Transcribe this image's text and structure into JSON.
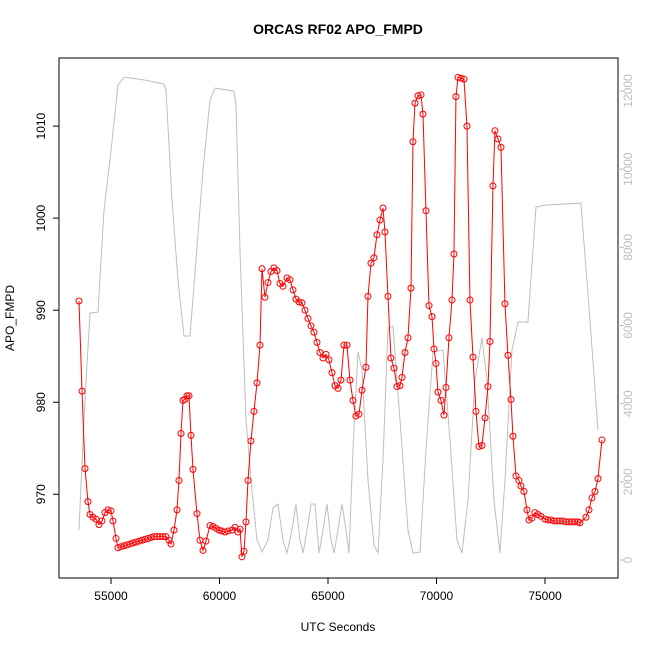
{
  "chart_data": {
    "type": "line",
    "title": "ORCAS RF02 APO_FMPD",
    "xlabel": "UTC Seconds",
    "ylabel": "APO_FMPD",
    "xlim": [
      52604,
      78364
    ],
    "xticks": [
      55000,
      60000,
      65000,
      70000,
      75000
    ],
    "ylim": [
      960.9,
      1017.4
    ],
    "yticks": [
      970,
      980,
      990,
      1000,
      1010
    ],
    "y2lim": [
      -460,
      12844
    ],
    "y2ticks": [
      0,
      2000,
      4000,
      6000,
      8000,
      10000,
      12000
    ],
    "series": [
      {
        "color": "#ff0000",
        "marker": "circle",
        "x": [
          53525,
          53664,
          53802,
          53940,
          54032,
          54171,
          54309,
          54447,
          54585,
          54724,
          54862,
          55000,
          55092,
          55230,
          55323,
          55461,
          55599,
          55737,
          55876,
          56014,
          56152,
          56290,
          56429,
          56567,
          56705,
          56843,
          56982,
          57120,
          57258,
          57396,
          57534,
          57673,
          57765,
          57903,
          58041,
          58133,
          58226,
          58318,
          58410,
          58502,
          58594,
          58686,
          58779,
          58963,
          59101,
          59239,
          59378,
          59562,
          59700,
          59838,
          59976,
          60115,
          60253,
          60391,
          60576,
          60714,
          60852,
          60944,
          61036,
          61129,
          61221,
          61313,
          61451,
          61589,
          61728,
          61866,
          61958,
          62096,
          62235,
          62373,
          62511,
          62649,
          62788,
          62926,
          63110,
          63248,
          63387,
          63525,
          63663,
          63801,
          63940,
          64078,
          64216,
          64354,
          64492,
          64631,
          64769,
          64907,
          65045,
          65184,
          65322,
          65460,
          65598,
          65737,
          65875,
          66013,
          66151,
          66290,
          66428,
          66566,
          66750,
          66843,
          66981,
          67119,
          67257,
          67396,
          67534,
          67626,
          67764,
          67902,
          68041,
          68179,
          68317,
          68409,
          68548,
          68686,
          68824,
          68916,
          69009,
          69147,
          69285,
          69377,
          69515,
          69654,
          69792,
          69884,
          69976,
          70068,
          70206,
          70344,
          70437,
          70575,
          70713,
          70805,
          70897,
          70990,
          71128,
          71266,
          71404,
          71542,
          71681,
          71819,
          71957,
          72095,
          72234,
          72372,
          72464,
          72602,
          72694,
          72833,
          72971,
          73155,
          73293,
          73432,
          73524,
          73662,
          73800,
          73892,
          74030,
          74169,
          74261,
          74399,
          74537,
          74676,
          74814,
          74998,
          75137,
          75275,
          75413,
          75551,
          75690,
          75828,
          75966,
          76104,
          76243,
          76381,
          76519,
          76611,
          76888,
          77026,
          77164,
          77303,
          77441,
          77625
        ],
        "values": [
          991.0,
          981.2,
          972.8,
          969.2,
          967.8,
          967.5,
          967.3,
          966.7,
          967.1,
          968.0,
          968.3,
          968.2,
          967.1,
          965.2,
          964.2,
          964.3,
          964.4,
          964.5,
          964.6,
          964.7,
          964.8,
          964.9,
          965.0,
          965.1,
          965.2,
          965.3,
          965.4,
          965.4,
          965.4,
          965.4,
          965.4,
          965.0,
          964.6,
          966.1,
          968.3,
          971.5,
          976.6,
          980.2,
          980.3,
          980.7,
          980.7,
          976.4,
          972.7,
          967.9,
          965.0,
          963.9,
          964.9,
          966.6,
          966.5,
          966.3,
          966.1,
          966.0,
          965.9,
          966.0,
          966.1,
          966.4,
          965.9,
          966.2,
          963.2,
          963.8,
          967.0,
          971.5,
          975.8,
          979.0,
          982.1,
          986.2,
          994.5,
          991.4,
          993.0,
          994.2,
          994.6,
          994.3,
          992.9,
          992.6,
          993.5,
          993.3,
          992.2,
          991.2,
          990.9,
          990.8,
          990.0,
          989.1,
          988.3,
          987.6,
          986.5,
          985.4,
          984.8,
          985.2,
          984.6,
          983.2,
          981.8,
          981.5,
          982.4,
          986.2,
          986.2,
          982.4,
          980.2,
          978.5,
          978.7,
          981.3,
          983.8,
          991.5,
          995.1,
          995.7,
          998.2,
          999.8,
          1001.1,
          998.5,
          991.5,
          984.8,
          983.7,
          981.7,
          981.8,
          982.7,
          985.4,
          987.0,
          992.4,
          1008.3,
          1012.5,
          1013.3,
          1013.4,
          1011.3,
          1000.8,
          990.5,
          989.3,
          985.8,
          984.2,
          981.1,
          980.2,
          978.6,
          981.6,
          987.0,
          991.1,
          996.1,
          1013.2,
          1015.3,
          1015.2,
          1015.1,
          1010.0,
          991.1,
          984.9,
          979.0,
          975.2,
          975.3,
          978.3,
          981.7,
          986.6,
          1003.5,
          1009.5,
          1008.6,
          1007.7,
          990.7,
          985.1,
          980.3,
          976.3,
          972.0,
          971.5,
          970.9,
          970.3,
          968.3,
          967.2,
          967.4,
          968.0,
          967.8,
          967.6,
          967.3,
          967.2,
          967.2,
          967.1,
          967.1,
          967.1,
          967.1,
          967.0,
          967.0,
          967.0,
          967.0,
          967.0,
          966.9,
          967.5,
          968.3,
          969.6,
          970.3,
          971.7,
          975.9
        ]
      },
      {
        "color": "#bebebe",
        "axis": "y2",
        "x": [
          53525,
          53802,
          54032,
          54401,
          54677,
          54954,
          55323,
          55599,
          56567,
          57442,
          57534,
          57811,
          58087,
          58364,
          58640,
          58917,
          59239,
          59562,
          59792,
          60668,
          60760,
          60944,
          61221,
          61497,
          61728,
          61958,
          62235,
          62465,
          62696,
          62926,
          63110,
          63341,
          63525,
          63709,
          63847,
          64032,
          64216,
          64400,
          64585,
          64769,
          64953,
          65138,
          65276,
          65460,
          65645,
          65829,
          65967,
          66151,
          66382,
          66566,
          66843,
          67119,
          67304,
          67534,
          67764,
          67995,
          68317,
          68686,
          68916,
          69239,
          69515,
          69838,
          70298,
          70621,
          70944,
          71174,
          71450,
          71773,
          72095,
          72326,
          72648,
          72925,
          73155,
          73478,
          73754,
          74215,
          74584,
          74998,
          76657,
          77072,
          77441
        ],
        "values": [
          767,
          4093,
          6318,
          6344,
          8953,
          10232,
          12151,
          12355,
          12279,
          12176,
          12023,
          9209,
          7163,
          5730,
          5730,
          7674,
          9976,
          11767,
          12074,
          11997,
          11639,
          7930,
          3581,
          1791,
          512,
          205,
          512,
          1330,
          1432,
          512,
          179,
          768,
          1432,
          512,
          179,
          768,
          1432,
          1432,
          179,
          768,
          1432,
          512,
          179,
          768,
          1432,
          768,
          179,
          2814,
          5321,
          4860,
          2046,
          384,
          179,
          2558,
          5935,
          5986,
          3581,
          768,
          179,
          205,
          2814,
          5321,
          5372,
          3070,
          512,
          179,
          1535,
          4605,
          5679,
          4605,
          1535,
          179,
          2046,
          5372,
          6088,
          6088,
          9030,
          9081,
          9132,
          6139,
          3325
        ]
      }
    ]
  }
}
